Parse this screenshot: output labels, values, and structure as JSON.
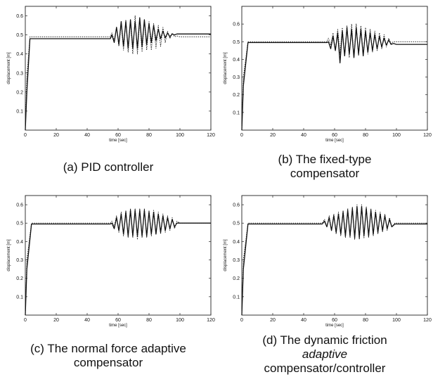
{
  "chart_data": [
    {
      "id": "a",
      "type": "line",
      "caption": [
        "(a) PID controller"
      ],
      "xlabel": "time [sec]",
      "ylabel": "displacement [m]",
      "xlim": [
        0,
        120
      ],
      "ylim": [
        0,
        0.65
      ],
      "xticks": [
        0,
        20,
        40,
        60,
        80,
        100,
        120
      ],
      "yticks": [
        0.1,
        0.2,
        0.3,
        0.4,
        0.5,
        0.6
      ],
      "grid": false,
      "series": [
        {
          "style": "dotted",
          "x": [
            0,
            1,
            3,
            55,
            56,
            57.5,
            59,
            60.5,
            62,
            63.5,
            65,
            66.5,
            68,
            69.5,
            71,
            72.5,
            74,
            75.5,
            77,
            78.5,
            80,
            81.5,
            83,
            84.5,
            86,
            87.5,
            89,
            90.5,
            92,
            93.5,
            95,
            96.5,
            98,
            100,
            120
          ],
          "y": [
            0,
            0.28,
            0.49,
            0.49,
            0.51,
            0.47,
            0.54,
            0.44,
            0.56,
            0.42,
            0.58,
            0.41,
            0.57,
            0.4,
            0.6,
            0.4,
            0.58,
            0.41,
            0.58,
            0.42,
            0.57,
            0.42,
            0.56,
            0.43,
            0.55,
            0.44,
            0.54,
            0.46,
            0.52,
            0.48,
            0.51,
            0.49,
            0.495,
            0.49,
            0.49
          ]
        },
        {
          "style": "solid",
          "x": [
            0,
            1,
            3,
            55,
            56,
            57.5,
            59,
            60.5,
            62,
            63.5,
            65,
            66.5,
            68,
            69.5,
            71,
            72.5,
            74,
            75.5,
            77,
            78.5,
            80,
            81.5,
            83,
            84.5,
            86,
            87.5,
            89,
            90.5,
            92,
            93.5,
            95,
            96.5,
            98,
            100,
            120
          ],
          "y": [
            0,
            0.2,
            0.48,
            0.48,
            0.5,
            0.46,
            0.54,
            0.45,
            0.57,
            0.44,
            0.57,
            0.43,
            0.58,
            0.43,
            0.57,
            0.43,
            0.59,
            0.44,
            0.58,
            0.45,
            0.56,
            0.46,
            0.55,
            0.47,
            0.53,
            0.48,
            0.52,
            0.485,
            0.51,
            0.49,
            0.505,
            0.5,
            0.505,
            0.505,
            0.505
          ]
        }
      ]
    },
    {
      "id": "b",
      "type": "line",
      "caption": [
        "(b) The fixed-type",
        "compensator"
      ],
      "xlabel": "time [sec]",
      "ylabel": "displacement [m]",
      "xlim": [
        0,
        120
      ],
      "ylim": [
        0,
        0.7
      ],
      "xticks": [
        0,
        20,
        40,
        60,
        80,
        100,
        120
      ],
      "yticks": [
        0.1,
        0.2,
        0.3,
        0.4,
        0.5,
        0.6
      ],
      "grid": false,
      "series": [
        {
          "style": "dotted",
          "x": [
            0,
            1,
            4,
            55,
            56,
            57.5,
            59,
            60.5,
            62,
            63.5,
            65,
            66.5,
            68,
            69.5,
            71,
            72.5,
            74,
            75.5,
            77,
            78.5,
            80,
            81.5,
            83,
            84.5,
            86,
            87.5,
            89,
            90.5,
            92,
            93.5,
            95,
            96.5,
            98,
            100,
            120
          ],
          "y": [
            0,
            0.3,
            0.5,
            0.5,
            0.52,
            0.48,
            0.55,
            0.45,
            0.57,
            0.43,
            0.58,
            0.42,
            0.59,
            0.41,
            0.6,
            0.41,
            0.6,
            0.42,
            0.59,
            0.42,
            0.58,
            0.43,
            0.57,
            0.44,
            0.56,
            0.45,
            0.55,
            0.46,
            0.54,
            0.47,
            0.52,
            0.49,
            0.5,
            0.5,
            0.5
          ]
        },
        {
          "style": "solid",
          "x": [
            0,
            1,
            4,
            55,
            56,
            57.5,
            59,
            60.5,
            62,
            63.5,
            65,
            66.5,
            68,
            69.5,
            71,
            72.5,
            74,
            75.5,
            77,
            78.5,
            80,
            81.5,
            83,
            84.5,
            86,
            87.5,
            89,
            90.5,
            92,
            93.5,
            95,
            96.5,
            98,
            100,
            120
          ],
          "y": [
            0,
            0.25,
            0.495,
            0.495,
            0.5,
            0.46,
            0.53,
            0.45,
            0.55,
            0.38,
            0.56,
            0.42,
            0.58,
            0.43,
            0.57,
            0.41,
            0.58,
            0.43,
            0.57,
            0.42,
            0.56,
            0.44,
            0.55,
            0.45,
            0.54,
            0.46,
            0.53,
            0.47,
            0.52,
            0.48,
            0.51,
            0.485,
            0.49,
            0.485,
            0.485
          ]
        }
      ]
    },
    {
      "id": "c",
      "type": "line",
      "caption": [
        "(c) The normal force adaptive",
        "compensator"
      ],
      "xlabel": "time [sec]",
      "ylabel": "displacement [m]",
      "xlim": [
        0,
        120
      ],
      "ylim": [
        0,
        0.65
      ],
      "xticks": [
        0,
        20,
        40,
        60,
        80,
        100,
        120
      ],
      "yticks": [
        0.1,
        0.2,
        0.3,
        0.4,
        0.5,
        0.6
      ],
      "grid": false,
      "series": [
        {
          "style": "dotted",
          "x": [
            0,
            1,
            4,
            55,
            56,
            57.5,
            59,
            60.5,
            62,
            63.5,
            65,
            66.5,
            68,
            69.5,
            71,
            72.5,
            74,
            75.5,
            77,
            78.5,
            80,
            81.5,
            83,
            84.5,
            86,
            87.5,
            89,
            90.5,
            92,
            93.5,
            95,
            96.5,
            98,
            100,
            120
          ],
          "y": [
            0,
            0.3,
            0.5,
            0.5,
            0.51,
            0.48,
            0.54,
            0.45,
            0.56,
            0.43,
            0.57,
            0.42,
            0.58,
            0.42,
            0.58,
            0.41,
            0.58,
            0.42,
            0.58,
            0.42,
            0.57,
            0.43,
            0.57,
            0.44,
            0.56,
            0.44,
            0.55,
            0.45,
            0.54,
            0.46,
            0.53,
            0.47,
            0.51,
            0.5,
            0.5
          ]
        },
        {
          "style": "solid",
          "x": [
            0,
            1,
            4,
            55,
            56,
            57.5,
            59,
            60.5,
            62,
            63.5,
            65,
            66.5,
            68,
            69.5,
            71,
            72.5,
            74,
            75.5,
            77,
            78.5,
            80,
            81.5,
            83,
            84.5,
            86,
            87.5,
            89,
            90.5,
            92,
            93.5,
            95,
            96.5,
            98,
            100,
            120
          ],
          "y": [
            0,
            0.25,
            0.495,
            0.495,
            0.5,
            0.47,
            0.53,
            0.46,
            0.55,
            0.44,
            0.56,
            0.43,
            0.57,
            0.43,
            0.57,
            0.43,
            0.57,
            0.43,
            0.57,
            0.43,
            0.56,
            0.44,
            0.56,
            0.44,
            0.55,
            0.45,
            0.54,
            0.46,
            0.53,
            0.47,
            0.52,
            0.48,
            0.5,
            0.5,
            0.5
          ]
        }
      ]
    },
    {
      "id": "d",
      "type": "line",
      "caption": [
        "(d) The dynamic friction",
        "adaptive",
        "compensator/controller"
      ],
      "caption_italic_line": 1,
      "xlabel": "time [sec]",
      "ylabel": "displacement [m]",
      "xlim": [
        0,
        120
      ],
      "ylim": [
        0,
        0.65
      ],
      "xticks": [
        0,
        20,
        40,
        60,
        80,
        100,
        120
      ],
      "yticks": [
        0.1,
        0.2,
        0.3,
        0.4,
        0.5,
        0.6
      ],
      "grid": false,
      "series": [
        {
          "style": "dotted",
          "x": [
            0,
            1,
            4,
            52,
            53.5,
            55,
            56.5,
            58,
            59.5,
            61,
            62.5,
            64,
            65.5,
            67,
            68.5,
            70,
            71.5,
            73,
            74.5,
            76,
            77.5,
            79,
            80.5,
            82,
            83.5,
            85,
            86.5,
            88,
            89.5,
            91,
            92.5,
            94,
            95.5,
            97,
            99,
            120
          ],
          "y": [
            0,
            0.3,
            0.5,
            0.5,
            0.52,
            0.48,
            0.54,
            0.46,
            0.55,
            0.44,
            0.56,
            0.43,
            0.57,
            0.42,
            0.58,
            0.42,
            0.59,
            0.41,
            0.6,
            0.41,
            0.6,
            0.42,
            0.59,
            0.42,
            0.58,
            0.43,
            0.57,
            0.44,
            0.56,
            0.45,
            0.55,
            0.46,
            0.53,
            0.48,
            0.5,
            0.5
          ]
        },
        {
          "style": "solid",
          "x": [
            0,
            1,
            4,
            52,
            53.5,
            55,
            56.5,
            58,
            59.5,
            61,
            62.5,
            64,
            65.5,
            67,
            68.5,
            70,
            71.5,
            73,
            74.5,
            76,
            77.5,
            79,
            80.5,
            82,
            83.5,
            85,
            86.5,
            88,
            89.5,
            91,
            92.5,
            94,
            95.5,
            97,
            99,
            120
          ],
          "y": [
            0,
            0.25,
            0.495,
            0.495,
            0.51,
            0.48,
            0.53,
            0.46,
            0.54,
            0.45,
            0.55,
            0.44,
            0.56,
            0.43,
            0.57,
            0.43,
            0.58,
            0.42,
            0.59,
            0.42,
            0.59,
            0.43,
            0.58,
            0.43,
            0.57,
            0.44,
            0.56,
            0.45,
            0.55,
            0.46,
            0.54,
            0.47,
            0.52,
            0.48,
            0.495,
            0.495
          ]
        }
      ]
    }
  ]
}
